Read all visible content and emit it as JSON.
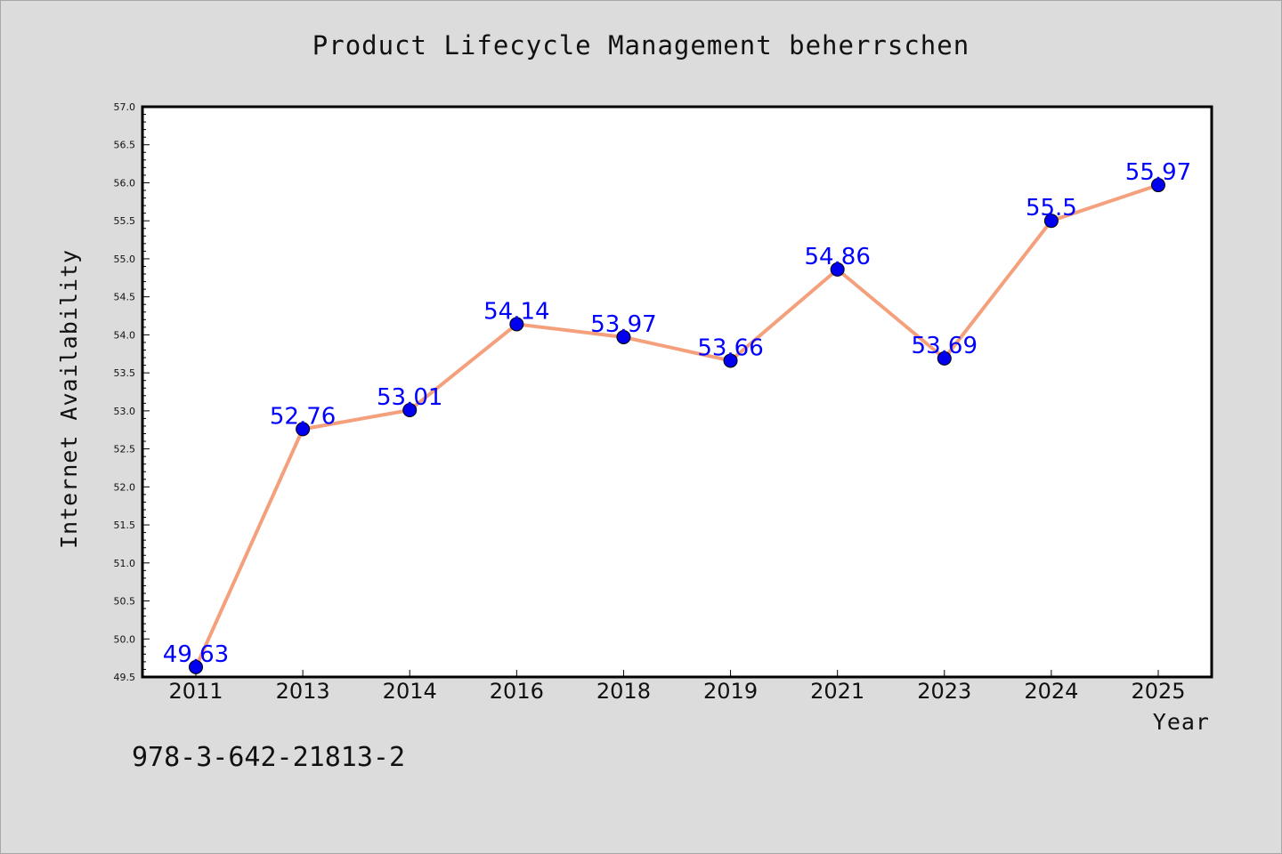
{
  "chart_data": {
    "type": "line",
    "title": "Product Lifecycle Management beherrschen",
    "xlabel": "Year",
    "ylabel": "Internet Availability",
    "categories": [
      "2011",
      "2013",
      "2014",
      "2016",
      "2018",
      "2019",
      "2021",
      "2023",
      "2024",
      "2025"
    ],
    "values": [
      49.63,
      52.76,
      53.01,
      54.14,
      53.97,
      53.66,
      54.86,
      53.69,
      55.5,
      55.97
    ],
    "data_labels": [
      "49.63",
      "52.76",
      "53.01",
      "54.14",
      "53.97",
      "53.66",
      "54.86",
      "53.69",
      "55.5",
      "55.97"
    ],
    "ylim": [
      49.5,
      57.0
    ],
    "y_major_step": 0.5,
    "y_minor_step": 0.1,
    "grid": false,
    "legend": "none",
    "line_color": "#f4a07c",
    "marker_color": "#0000ee",
    "label_color": "#0000ff",
    "plot_background": "#ffffff",
    "figure_background": "#dcdcdc"
  },
  "footer": {
    "isbn": "978-3-642-21813-2"
  }
}
